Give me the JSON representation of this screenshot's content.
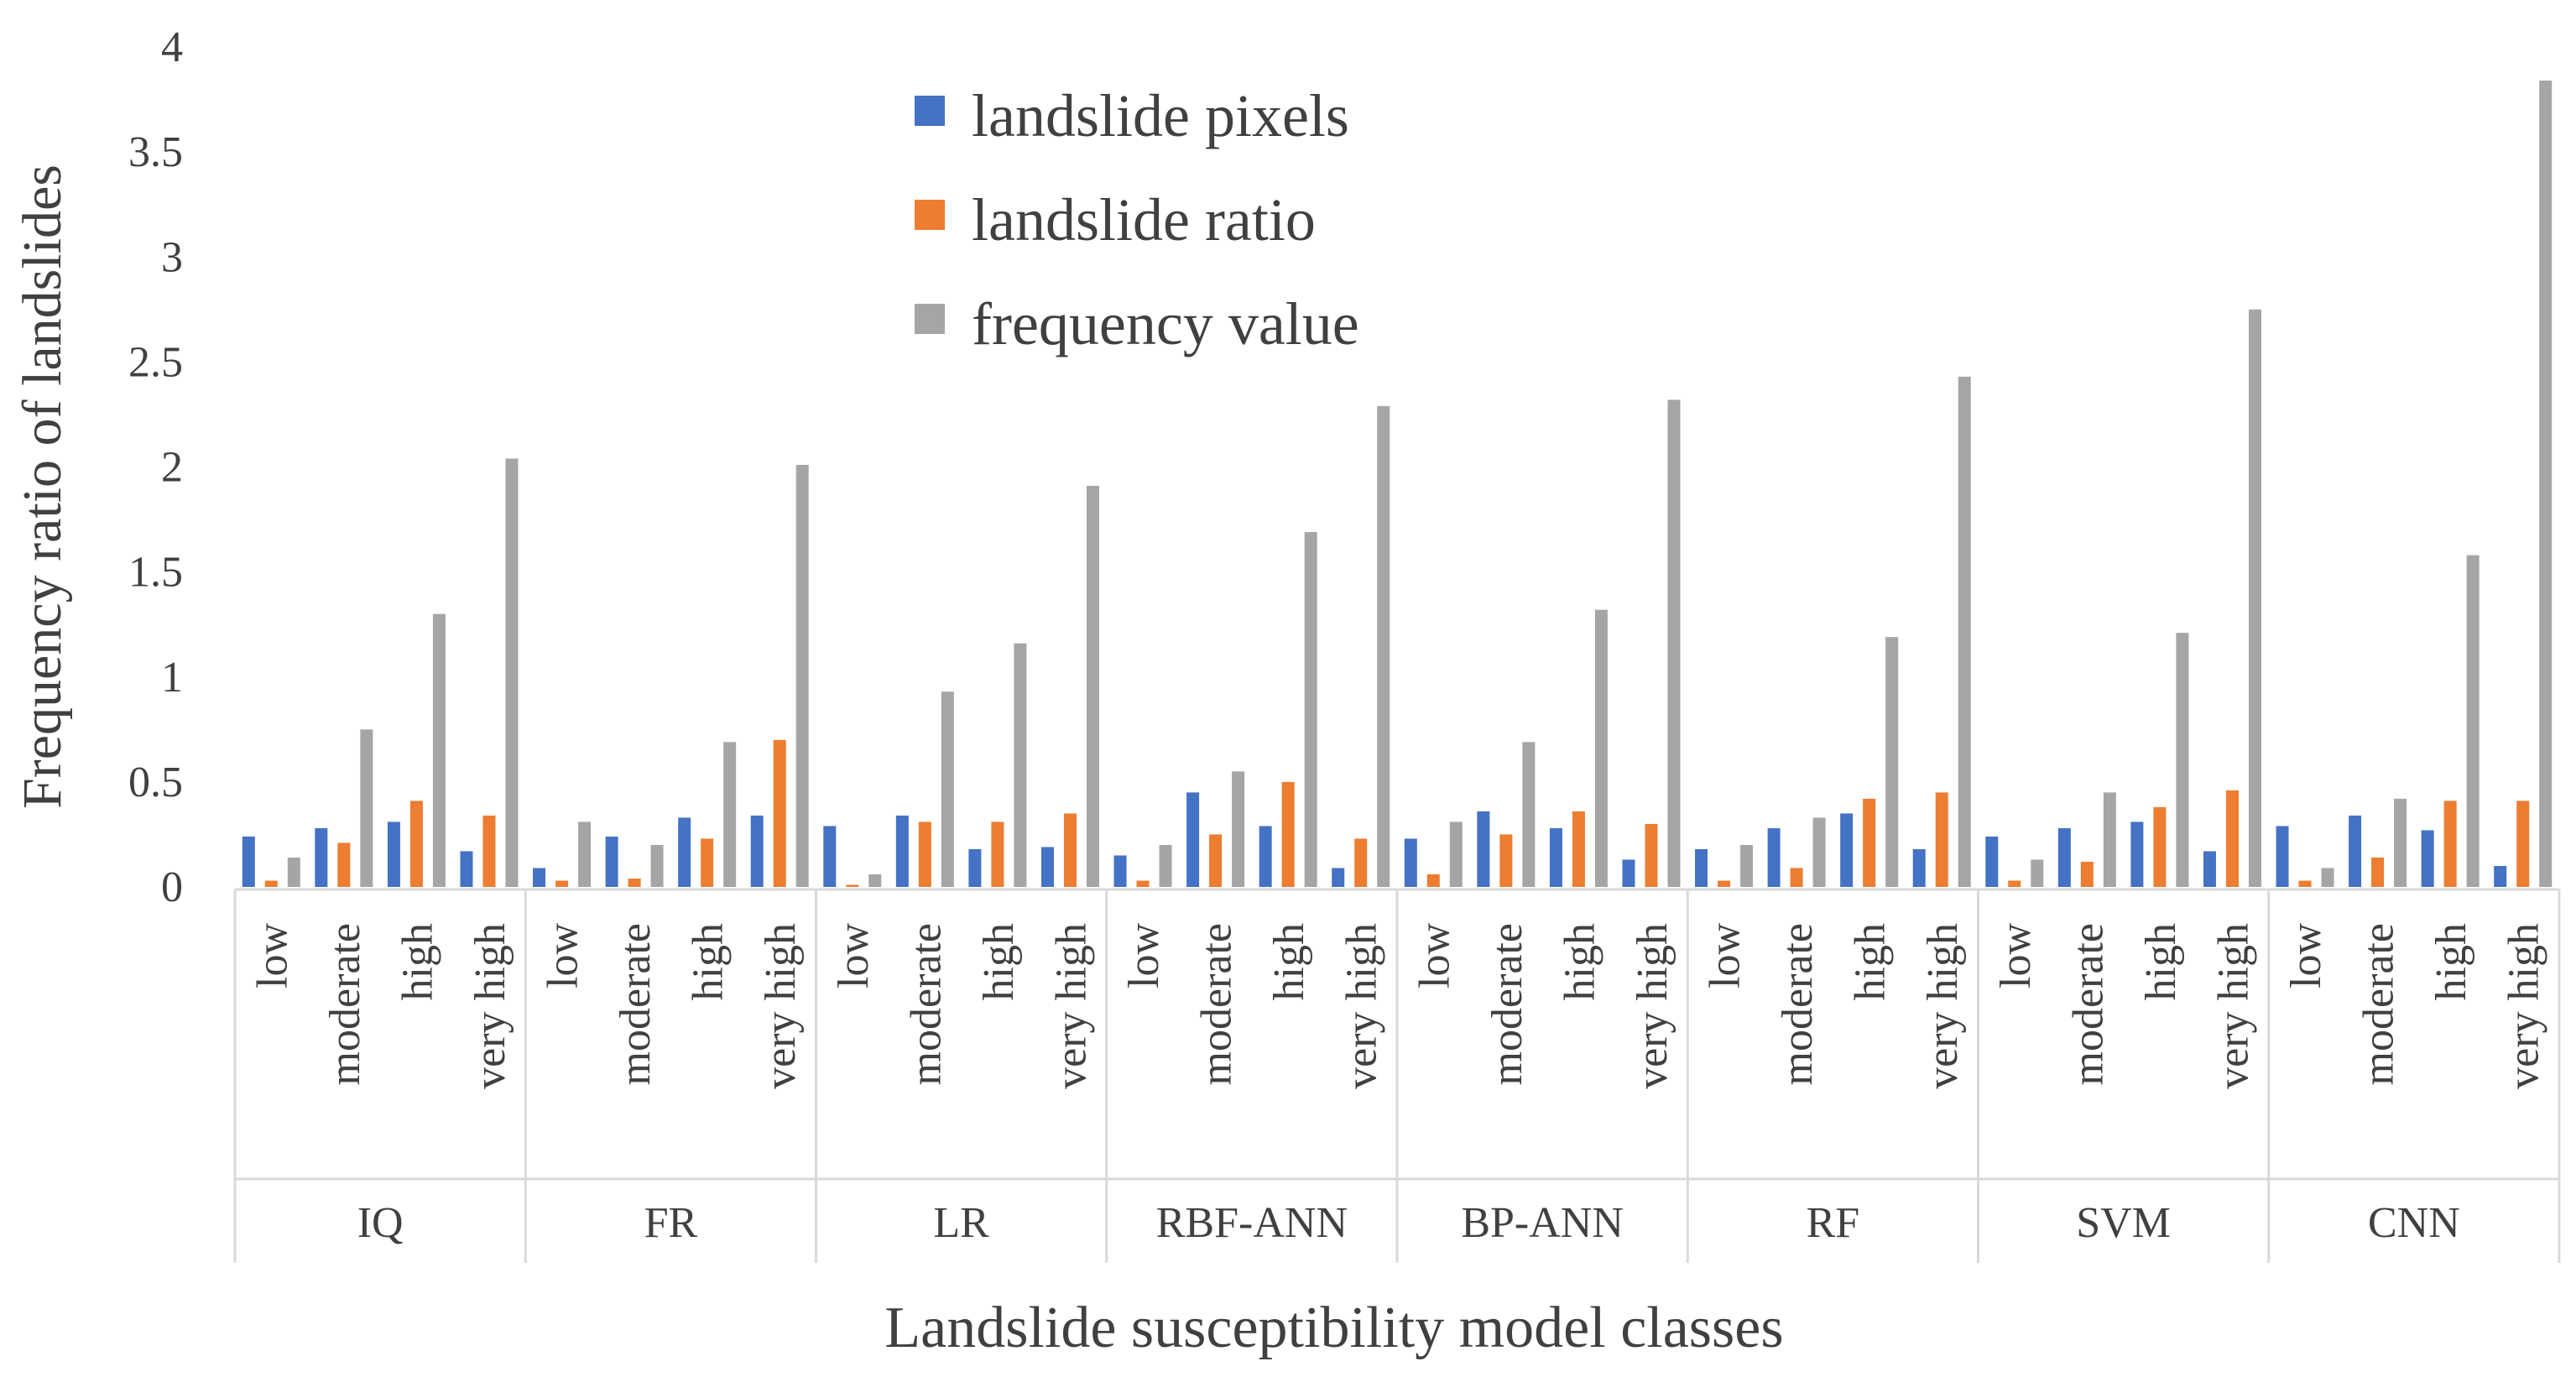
{
  "chart_data": {
    "type": "bar",
    "title": "",
    "xlabel": "Landslide susceptibility model classes",
    "ylabel": "Frequency ratio of landslides",
    "ylim": [
      0,
      4
    ],
    "yticks": [
      "0",
      "0.5",
      "1",
      "1.5",
      "2",
      "2.5",
      "3",
      "3.5",
      "4"
    ],
    "grid": false,
    "legend_position": "top-center",
    "classes": [
      "low",
      "moderate",
      "high",
      "very high"
    ],
    "groups": [
      "IQ",
      "FR",
      "LR",
      "RBF-ANN",
      "BP-ANN",
      "RF",
      "SVM",
      "CNN"
    ],
    "colors": {
      "landslide pixels": "#4472C4",
      "landslide ratio": "#ED7D31",
      "frequency value": "#A5A5A5"
    },
    "series": [
      {
        "name": "landslide pixels",
        "values": [
          [
            0.24,
            0.28,
            0.31,
            0.17
          ],
          [
            0.09,
            0.24,
            0.33,
            0.34
          ],
          [
            0.29,
            0.34,
            0.18,
            0.19
          ],
          [
            0.15,
            0.45,
            0.29,
            0.09
          ],
          [
            0.23,
            0.36,
            0.28,
            0.13
          ],
          [
            0.18,
            0.28,
            0.35,
            0.18
          ],
          [
            0.24,
            0.28,
            0.31,
            0.17
          ],
          [
            0.29,
            0.34,
            0.27,
            0.1
          ]
        ]
      },
      {
        "name": "landslide ratio",
        "values": [
          [
            0.03,
            0.21,
            0.41,
            0.34
          ],
          [
            0.03,
            0.04,
            0.23,
            0.7
          ],
          [
            0.01,
            0.31,
            0.31,
            0.35
          ],
          [
            0.03,
            0.25,
            0.5,
            0.23
          ],
          [
            0.06,
            0.25,
            0.36,
            0.3
          ],
          [
            0.03,
            0.09,
            0.42,
            0.45
          ],
          [
            0.03,
            0.12,
            0.38,
            0.46
          ],
          [
            0.03,
            0.14,
            0.41,
            0.41
          ]
        ]
      },
      {
        "name": "frequency value",
        "values": [
          [
            0.14,
            0.75,
            1.3,
            2.04
          ],
          [
            0.31,
            0.2,
            0.69,
            2.01
          ],
          [
            0.06,
            0.93,
            1.16,
            1.91
          ],
          [
            0.2,
            0.55,
            1.69,
            2.29
          ],
          [
            0.31,
            0.69,
            1.32,
            2.32
          ],
          [
            0.2,
            0.33,
            1.19,
            2.43
          ],
          [
            0.13,
            0.45,
            1.21,
            2.75
          ],
          [
            0.09,
            0.42,
            1.58,
            3.84
          ]
        ]
      }
    ]
  }
}
